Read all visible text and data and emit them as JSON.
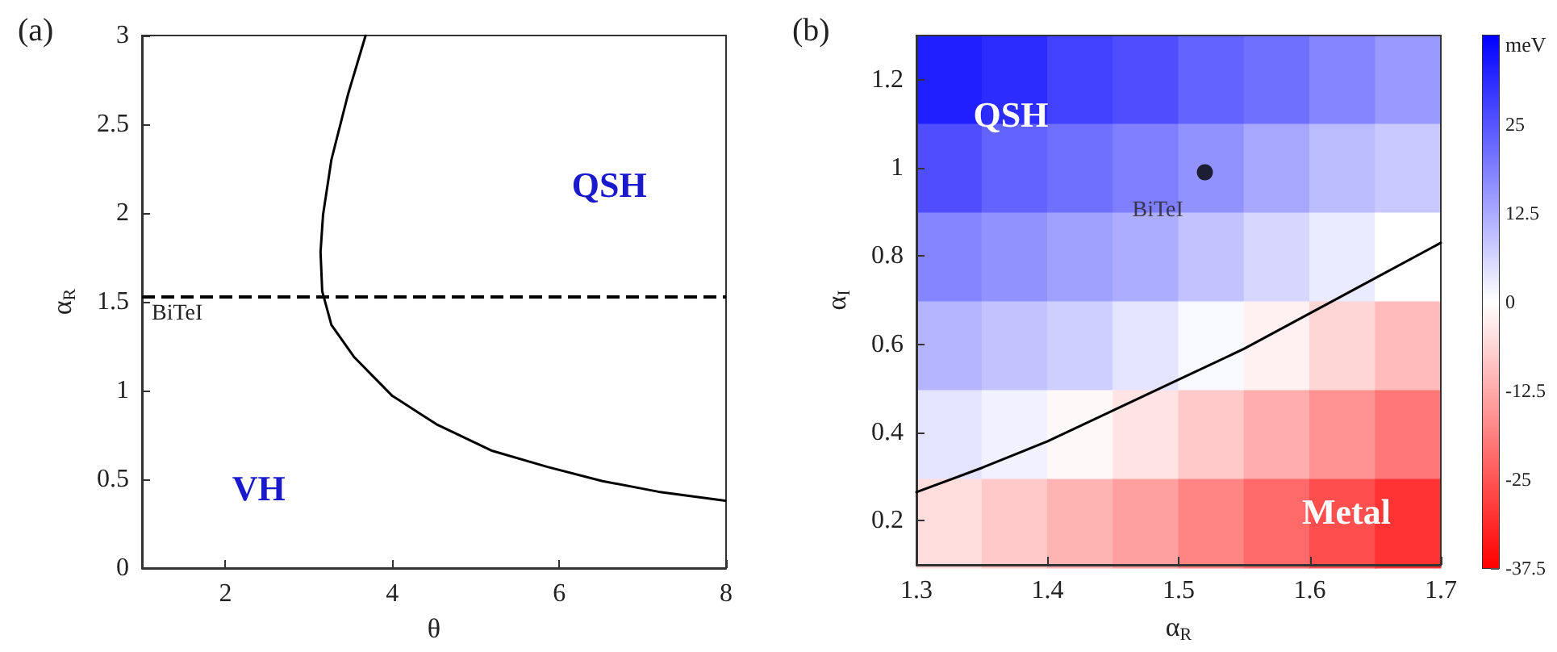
{
  "chart_data": [
    {
      "type": "line",
      "title": "(a)",
      "xlabel": "θ",
      "ylabel": "α$_{R}$",
      "xlim": [
        1,
        8
      ],
      "xticks": [
        2,
        4,
        6,
        8
      ],
      "ylim": [
        0,
        3
      ],
      "yticks": [
        0,
        0.5,
        1,
        1.5,
        2,
        2.5,
        3
      ],
      "marker": "none",
      "series": [
        {
          "color": "#000000",
          "x": [
            3.68,
            3.47,
            3.27,
            3.17,
            3.14,
            3.16,
            3.27,
            3.54,
            4.0,
            4.53,
            5.2,
            5.86,
            6.52,
            7.19,
            7.99
          ],
          "values": [
            3,
            2.67,
            2.3,
            1.99,
            1.78,
            1.56,
            1.37,
            1.19,
            0.97,
            0.81,
            0.66,
            0.57,
            0.49,
            0.43,
            0.38
          ]
        }
      ],
      "ref_lines": [
        {
          "axis": "y",
          "value": 1.53,
          "label": "BiTeI",
          "color": "#000000",
          "line_style": "dashed"
        }
      ],
      "annotations": [
        "QSH",
        "VH"
      ]
    },
    {
      "type": "heatmap",
      "tick_labels": false,
      "categories": [
        null,
        null,
        null,
        null,
        null,
        null,
        null,
        null
      ],
      "y_categories": [
        null,
        null,
        null,
        null,
        null,
        null
      ],
      "cells": [
        [
          33,
          31,
          28,
          26,
          23,
          21,
          18,
          15
        ],
        [
          26,
          23,
          21,
          19,
          16,
          13,
          10,
          8
        ],
        [
          18,
          16,
          14,
          12,
          9,
          6,
          3,
          0
        ],
        [
          11,
          9,
          7,
          4,
          1,
          -2,
          -6,
          -10
        ],
        [
          4,
          2,
          -1,
          -4,
          -8,
          -12,
          -16,
          -20
        ],
        [
          -5,
          -8,
          -11,
          -14,
          -18,
          -22,
          -26,
          -30
        ]
      ],
      "clim": [
        -37.5,
        37.5
      ],
      "cticks": [
        -37.5,
        -25,
        -12.5,
        0,
        12.5,
        25
      ],
      "clabel": "meV"
    },
    {
      "type": "line",
      "title": "(b)",
      "xlabel": "α$_{R}$",
      "ylabel": "α$_{I}$",
      "xlim": [
        1.3,
        1.7
      ],
      "xticks": [
        1.3,
        1.4,
        1.5,
        1.6,
        1.7
      ],
      "ylim": [
        0.1,
        1.3
      ],
      "yticks": [
        0.2,
        0.4,
        0.6,
        0.8,
        1,
        1.2
      ],
      "series": [
        {
          "marker": "none",
          "color": "#000000",
          "x": [
            1.3,
            1.35,
            1.4,
            1.45,
            1.5,
            1.55,
            1.6,
            1.65,
            1.7
          ],
          "values": [
            0.265,
            0.32,
            0.38,
            0.45,
            0.52,
            0.59,
            0.67,
            0.75,
            0.83
          ]
        },
        {
          "type": "scatter",
          "marker": "circle",
          "name": "BiTeI",
          "color": "#000000",
          "x": [
            1.52
          ],
          "values": [
            0.99
          ]
        }
      ],
      "annotations": [
        "QSH",
        "Metal"
      ]
    }
  ]
}
